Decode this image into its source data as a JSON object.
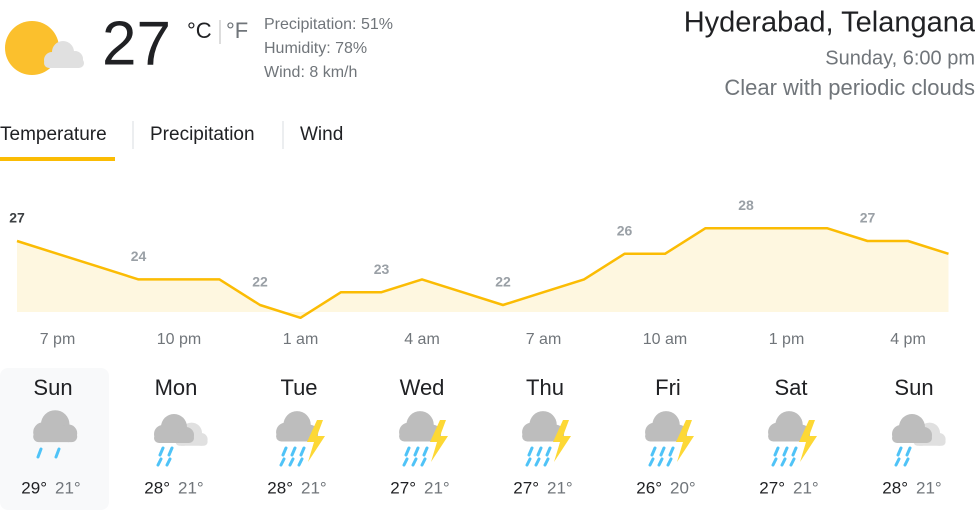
{
  "current": {
    "temperature": "27",
    "unit_c": "°C",
    "unit_f": "°F",
    "precipitation": "Precipitation: 51%",
    "humidity": "Humidity: 78%",
    "wind": "Wind: 8 km/h"
  },
  "location": {
    "place": "Hyderabad, Telangana",
    "time": "Sunday, 6:00 pm",
    "condition": "Clear with periodic clouds"
  },
  "tabs": [
    "Temperature",
    "Precipitation",
    "Wind"
  ],
  "chart_data": {
    "type": "line",
    "categories": [
      "7 pm",
      null,
      null,
      "10 pm",
      null,
      null,
      "1 am",
      null,
      null,
      "4 am",
      null,
      null,
      "7 am",
      null,
      null,
      "10 am",
      null,
      null,
      "1 pm",
      null,
      null,
      "4 pm",
      null,
      null
    ],
    "values": [
      27,
      26,
      25,
      24,
      24,
      24,
      22,
      21,
      23,
      23,
      24,
      23,
      22,
      23,
      24,
      26,
      26,
      28,
      28,
      28,
      28,
      27,
      27,
      26
    ],
    "color": "#fbbc04",
    "ylim": [
      20,
      30
    ]
  },
  "daily": [
    {
      "day": "Sun",
      "high": "29°",
      "low": "21°"
    },
    {
      "day": "Mon",
      "high": "28°",
      "low": "21°"
    },
    {
      "day": "Tue",
      "high": "28°",
      "low": "21°"
    },
    {
      "day": "Wed",
      "high": "27°",
      "low": "21°"
    },
    {
      "day": "Thu",
      "high": "27°",
      "low": "21°"
    },
    {
      "day": "Fri",
      "high": "26°",
      "low": "20°"
    },
    {
      "day": "Sat",
      "high": "27°",
      "low": "21°"
    },
    {
      "day": "Sun",
      "high": "28°",
      "low": "21°"
    }
  ]
}
